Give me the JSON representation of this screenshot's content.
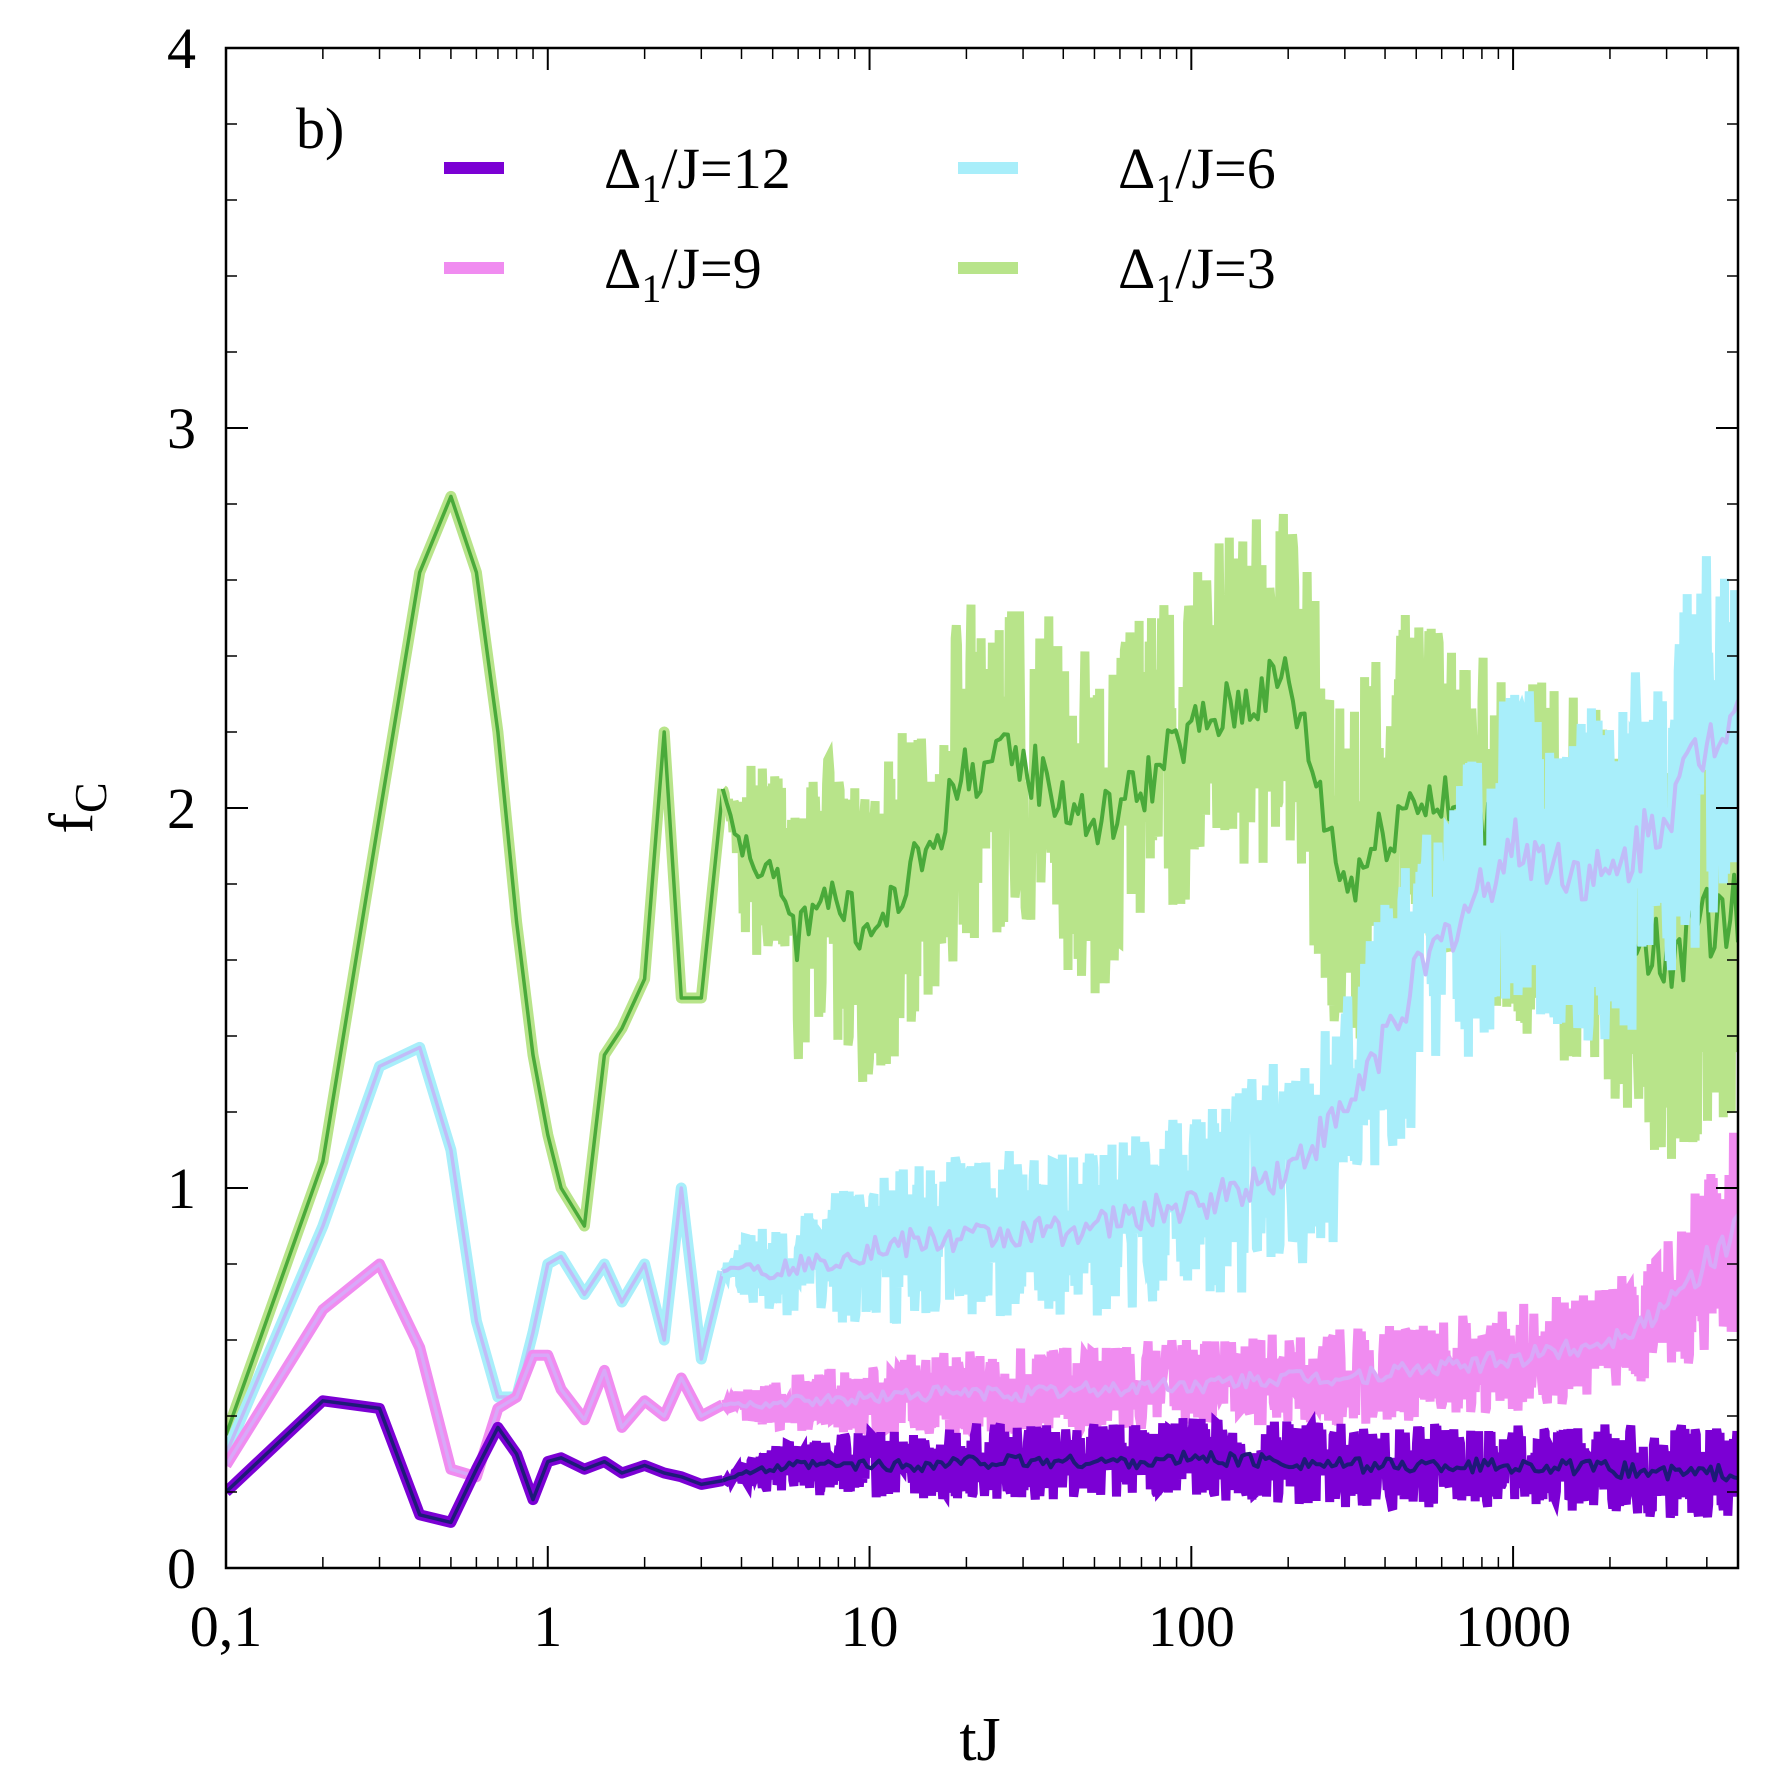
{
  "chart_data": {
    "type": "line",
    "panel_label": "b)",
    "xlabel": "tJ",
    "ylabel_main": "f",
    "ylabel_sub": "C",
    "x_scale": "log",
    "xlim": [
      0.1,
      5000
    ],
    "ylim": [
      0,
      4
    ],
    "x_ticks": [
      {
        "value": 0.1,
        "label": "0,1"
      },
      {
        "value": 1,
        "label": "1"
      },
      {
        "value": 10,
        "label": "10"
      },
      {
        "value": 100,
        "label": "100"
      },
      {
        "value": 1000,
        "label": "1000"
      }
    ],
    "y_ticks": [
      {
        "value": 0,
        "label": "0"
      },
      {
        "value": 1,
        "label": "1"
      },
      {
        "value": 2,
        "label": "2"
      },
      {
        "value": 3,
        "label": "3"
      },
      {
        "value": 4,
        "label": "4"
      }
    ],
    "legend_position": "top",
    "grid": false,
    "series": [
      {
        "name": "Δ1/J=12",
        "legend_main": "Δ",
        "legend_sub": "1",
        "legend_rest": "/J=12",
        "color": "#7b00d4",
        "avg_color": "#1e1a78",
        "x": [
          0.1,
          0.2,
          0.3,
          0.4,
          0.5,
          0.6,
          0.7,
          0.8,
          0.9,
          1.0,
          1.1,
          1.3,
          1.5,
          1.7,
          2.0,
          2.3,
          2.6,
          3.0,
          3.5,
          4,
          5,
          6,
          7,
          8,
          10,
          15,
          20,
          30,
          50,
          80,
          100,
          200,
          300,
          500,
          1000,
          2000,
          3000,
          5000
        ],
        "y": [
          0.2,
          0.44,
          0.42,
          0.14,
          0.12,
          0.26,
          0.37,
          0.3,
          0.18,
          0.28,
          0.29,
          0.26,
          0.28,
          0.25,
          0.27,
          0.25,
          0.24,
          0.22,
          0.23,
          0.25,
          0.26,
          0.27,
          0.27,
          0.27,
          0.27,
          0.27,
          0.28,
          0.28,
          0.28,
          0.28,
          0.29,
          0.28,
          0.27,
          0.27,
          0.27,
          0.26,
          0.25,
          0.25
        ],
        "band": [
          0.0,
          0.0,
          0.0,
          0.0,
          0.0,
          0.0,
          0.0,
          0.0,
          0.0,
          0.0,
          0.0,
          0.0,
          0.0,
          0.0,
          0.0,
          0.0,
          0.0,
          0.0,
          0.0,
          0.03,
          0.06,
          0.07,
          0.08,
          0.08,
          0.09,
          0.09,
          0.1,
          0.1,
          0.1,
          0.1,
          0.11,
          0.11,
          0.11,
          0.11,
          0.11,
          0.12,
          0.12,
          0.12
        ]
      },
      {
        "name": "Δ1/J=9",
        "legend_main": "Δ",
        "legend_sub": "1",
        "legend_rest": "/J=9",
        "color": "#f08cf0",
        "avg_color": "#d8a8f8",
        "x": [
          0.1,
          0.2,
          0.3,
          0.4,
          0.5,
          0.6,
          0.7,
          0.8,
          0.9,
          1.0,
          1.1,
          1.3,
          1.5,
          1.7,
          2.0,
          2.3,
          2.6,
          3.0,
          3.5,
          4,
          5,
          6,
          7,
          8,
          10,
          15,
          20,
          30,
          50,
          80,
          100,
          200,
          300,
          500,
          1000,
          2000,
          3000,
          5000
        ],
        "y": [
          0.27,
          0.68,
          0.8,
          0.58,
          0.26,
          0.24,
          0.42,
          0.45,
          0.56,
          0.56,
          0.47,
          0.39,
          0.52,
          0.37,
          0.44,
          0.4,
          0.5,
          0.4,
          0.43,
          0.43,
          0.43,
          0.44,
          0.44,
          0.44,
          0.45,
          0.46,
          0.46,
          0.46,
          0.47,
          0.48,
          0.48,
          0.5,
          0.5,
          0.52,
          0.55,
          0.6,
          0.68,
          0.9
        ],
        "band": [
          0.0,
          0.0,
          0.0,
          0.0,
          0.0,
          0.0,
          0.0,
          0.0,
          0.0,
          0.0,
          0.0,
          0.0,
          0.0,
          0.0,
          0.0,
          0.0,
          0.0,
          0.0,
          0.0,
          0.04,
          0.06,
          0.08,
          0.08,
          0.09,
          0.1,
          0.11,
          0.11,
          0.12,
          0.12,
          0.12,
          0.12,
          0.12,
          0.13,
          0.13,
          0.14,
          0.15,
          0.18,
          0.28
        ]
      },
      {
        "name": "Δ1/J=6",
        "legend_main": "Δ",
        "legend_sub": "1",
        "legend_rest": "/J=6",
        "color": "#a8eefa",
        "avg_color": "#c0bcf8",
        "x": [
          0.1,
          0.2,
          0.3,
          0.4,
          0.5,
          0.6,
          0.7,
          0.8,
          0.9,
          1.0,
          1.1,
          1.3,
          1.5,
          1.7,
          2.0,
          2.3,
          2.6,
          3.0,
          3.5,
          4,
          5,
          6,
          7,
          8,
          10,
          15,
          20,
          30,
          50,
          80,
          100,
          200,
          300,
          500,
          1000,
          2000,
          3000,
          5000
        ],
        "y": [
          0.3,
          0.9,
          1.32,
          1.37,
          1.1,
          0.65,
          0.45,
          0.45,
          0.62,
          0.8,
          0.82,
          0.72,
          0.8,
          0.7,
          0.8,
          0.6,
          1.0,
          0.55,
          0.78,
          0.8,
          0.78,
          0.8,
          0.8,
          0.82,
          0.84,
          0.86,
          0.87,
          0.88,
          0.9,
          0.94,
          0.95,
          1.05,
          1.2,
          1.55,
          1.9,
          1.8,
          2.0,
          2.3
        ],
        "band": [
          0.0,
          0.0,
          0.0,
          0.0,
          0.0,
          0.0,
          0.0,
          0.0,
          0.0,
          0.0,
          0.0,
          0.0,
          0.0,
          0.0,
          0.0,
          0.0,
          0.0,
          0.0,
          0.0,
          0.08,
          0.12,
          0.14,
          0.16,
          0.18,
          0.2,
          0.22,
          0.22,
          0.22,
          0.24,
          0.25,
          0.26,
          0.3,
          0.33,
          0.38,
          0.42,
          0.45,
          0.5,
          0.5
        ]
      },
      {
        "name": "Δ1/J=3",
        "legend_main": "Δ",
        "legend_sub": "1",
        "legend_rest": "/J=3",
        "color": "#b8e48a",
        "avg_color": "#4aaa3a",
        "x": [
          0.1,
          0.2,
          0.3,
          0.4,
          0.5,
          0.6,
          0.7,
          0.8,
          0.9,
          1.0,
          1.1,
          1.3,
          1.5,
          1.7,
          2.0,
          2.3,
          2.6,
          3.0,
          3.5,
          4,
          5,
          6,
          7,
          8,
          10,
          15,
          20,
          30,
          50,
          80,
          100,
          200,
          300,
          500,
          1000,
          2000,
          3000,
          5000
        ],
        "y": [
          0.35,
          1.07,
          1.98,
          2.62,
          2.82,
          2.62,
          2.2,
          1.7,
          1.35,
          1.14,
          1.0,
          0.9,
          1.35,
          1.42,
          1.55,
          2.2,
          1.5,
          1.5,
          2.05,
          1.9,
          1.82,
          1.65,
          1.8,
          1.75,
          1.65,
          1.88,
          2.1,
          2.12,
          1.95,
          2.1,
          2.2,
          2.35,
          1.8,
          2.05,
          1.9,
          1.75,
          1.6,
          1.75
        ],
        "band": [
          0.0,
          0.0,
          0.0,
          0.0,
          0.0,
          0.0,
          0.0,
          0.0,
          0.0,
          0.0,
          0.0,
          0.0,
          0.0,
          0.0,
          0.0,
          0.0,
          0.0,
          0.0,
          0.0,
          0.22,
          0.3,
          0.34,
          0.36,
          0.38,
          0.4,
          0.45,
          0.45,
          0.45,
          0.45,
          0.45,
          0.46,
          0.46,
          0.48,
          0.5,
          0.5,
          0.52,
          0.55,
          0.6
        ]
      }
    ]
  }
}
